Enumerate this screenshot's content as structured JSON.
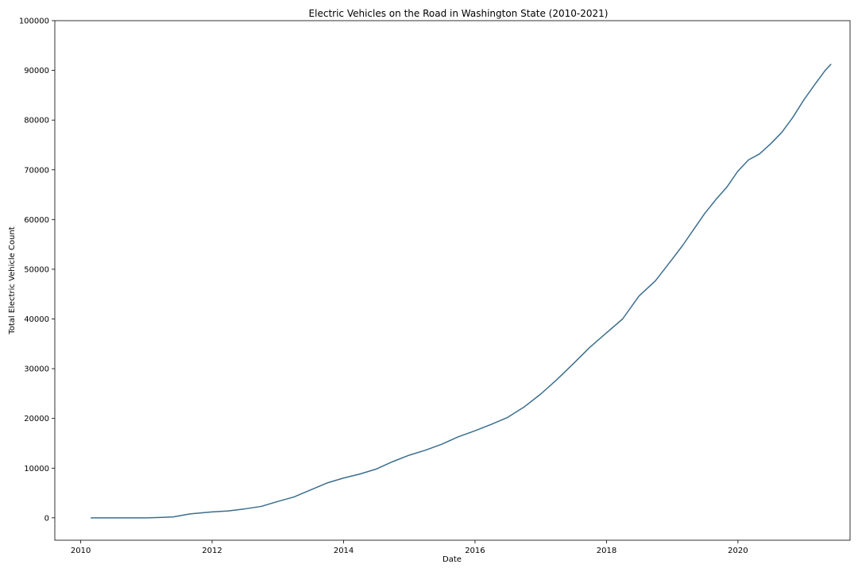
{
  "chart_data": {
    "type": "line",
    "title": "Electric Vehicles on the Road in Washington State (2010-2021)",
    "xlabel": "Date",
    "ylabel": "Total Electric Vehicle Count",
    "x_type": "date",
    "xlim": [
      "2009-08-10",
      "2021-09-15"
    ],
    "ylim": [
      -4500,
      100000
    ],
    "x_ticks": [
      {
        "value": "2010-01-01",
        "label": "2010"
      },
      {
        "value": "2012-01-01",
        "label": "2012"
      },
      {
        "value": "2014-01-01",
        "label": "2014"
      },
      {
        "value": "2016-01-01",
        "label": "2016"
      },
      {
        "value": "2018-01-01",
        "label": "2018"
      },
      {
        "value": "2020-01-01",
        "label": "2020"
      }
    ],
    "y_ticks": [
      0,
      10000,
      20000,
      30000,
      40000,
      50000,
      60000,
      70000,
      80000,
      90000,
      100000
    ],
    "grid": false,
    "legend": "none",
    "line_color": "#3b6e8f",
    "series": [
      {
        "x": [
          "2010-02-28",
          "2010-06-30",
          "2010-12-31",
          "2011-03-31",
          "2011-05-31",
          "2011-07-31",
          "2011-08-31",
          "2011-10-31",
          "2011-12-31",
          "2012-03-31",
          "2012-06-30",
          "2012-09-30",
          "2012-12-31",
          "2013-03-31",
          "2013-06-30",
          "2013-09-30",
          "2013-12-31",
          "2014-03-31",
          "2014-06-30",
          "2014-09-30",
          "2014-12-31",
          "2015-03-31",
          "2015-06-30",
          "2015-09-30",
          "2015-12-31",
          "2016-03-31",
          "2016-06-30",
          "2016-09-30",
          "2016-12-31",
          "2017-03-31",
          "2017-06-30",
          "2017-09-30",
          "2017-12-31",
          "2018-03-31",
          "2018-06-30",
          "2018-09-30",
          "2018-12-31",
          "2019-02-28",
          "2019-04-30",
          "2019-06-30",
          "2019-08-31",
          "2019-10-31",
          "2019-12-31",
          "2020-02-29",
          "2020-04-30",
          "2020-06-30",
          "2020-08-31",
          "2020-10-31",
          "2020-12-31",
          "2021-02-28",
          "2021-04-30",
          "2021-05-31"
        ],
        "values": [
          0,
          0,
          0,
          100,
          200,
          600,
          800,
          1000,
          1200,
          1400,
          1800,
          2300,
          3300,
          4200,
          5600,
          7000,
          8000,
          8800,
          9800,
          11300,
          12600,
          13600,
          14800,
          16300,
          17500,
          18800,
          20200,
          22300,
          24900,
          27800,
          31000,
          34300,
          37200,
          40000,
          44600,
          47700,
          52000,
          54800,
          58000,
          61200,
          64000,
          66500,
          69700,
          72000,
          73200,
          75200,
          77500,
          80500,
          84000,
          87000,
          90000,
          91200
        ]
      }
    ]
  }
}
